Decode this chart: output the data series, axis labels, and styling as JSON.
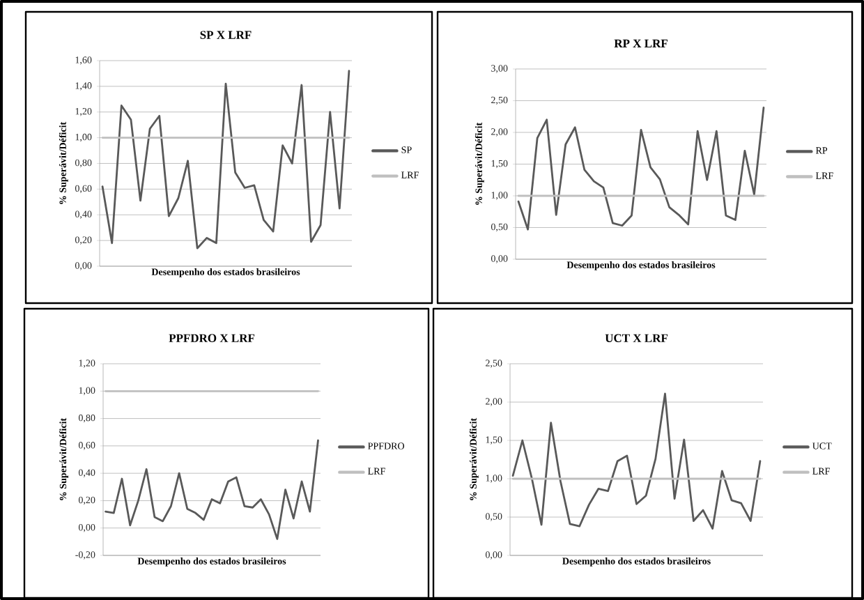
{
  "chart_data": [
    {
      "type": "line",
      "title": "SP X LRF",
      "xlabel": "Desempenho dos estados brasileiros",
      "ylabel": "% Superávit/Déficit",
      "categories": [
        null,
        null,
        null,
        null,
        null,
        null,
        null,
        null,
        null,
        null,
        null,
        null,
        null,
        null,
        null,
        null,
        null,
        null,
        null,
        null,
        null,
        null,
        null,
        null,
        null,
        null,
        null
      ],
      "series": [
        {
          "name": "SP",
          "color": "#595959",
          "values": [
            0.62,
            0.18,
            1.25,
            1.14,
            0.51,
            1.07,
            1.17,
            0.39,
            0.53,
            0.82,
            0.14,
            0.22,
            0.18,
            1.42,
            0.73,
            0.61,
            0.63,
            0.36,
            0.27,
            0.94,
            0.8,
            1.41,
            0.19,
            0.32,
            1.2,
            0.45,
            1.52
          ]
        },
        {
          "name": "LRF",
          "color": "#bfbfbf",
          "values": [
            1.0,
            1.0,
            1.0,
            1.0,
            1.0,
            1.0,
            1.0,
            1.0,
            1.0,
            1.0,
            1.0,
            1.0,
            1.0,
            1.0,
            1.0,
            1.0,
            1.0,
            1.0,
            1.0,
            1.0,
            1.0,
            1.0,
            1.0,
            1.0,
            1.0,
            1.0,
            1.0
          ]
        }
      ],
      "ylim": [
        0,
        1.6
      ],
      "yticks": [
        {
          "value": 0,
          "label": "0,00"
        },
        {
          "value": 0.2,
          "label": "0,20"
        },
        {
          "value": 0.4,
          "label": "0,40"
        },
        {
          "value": 0.6,
          "label": "0,60"
        },
        {
          "value": 0.8,
          "label": "0,80"
        },
        {
          "value": 1.0,
          "label": "1,00"
        },
        {
          "value": 1.2,
          "label": "1,20"
        },
        {
          "value": 1.4,
          "label": "1,40"
        },
        {
          "value": 1.6,
          "label": "1,60"
        }
      ],
      "grid": "y",
      "legend": "right"
    },
    {
      "type": "line",
      "title": "RP X LRF",
      "xlabel": "Desempenho dos estados brasileiros",
      "ylabel": "% Superávit/Déficit",
      "categories": [
        null,
        null,
        null,
        null,
        null,
        null,
        null,
        null,
        null,
        null,
        null,
        null,
        null,
        null,
        null,
        null,
        null,
        null,
        null,
        null,
        null,
        null,
        null,
        null,
        null,
        null,
        null
      ],
      "series": [
        {
          "name": "RP",
          "color": "#595959",
          "values": [
            0.91,
            0.47,
            1.91,
            2.2,
            0.7,
            1.81,
            2.08,
            1.41,
            1.23,
            1.13,
            0.57,
            0.53,
            0.69,
            2.04,
            1.45,
            1.26,
            0.82,
            0.7,
            0.55,
            2.02,
            1.25,
            2.02,
            0.69,
            0.62,
            1.71,
            1.02,
            2.39
          ]
        },
        {
          "name": "LRF",
          "color": "#bfbfbf",
          "values": [
            1.0,
            1.0,
            1.0,
            1.0,
            1.0,
            1.0,
            1.0,
            1.0,
            1.0,
            1.0,
            1.0,
            1.0,
            1.0,
            1.0,
            1.0,
            1.0,
            1.0,
            1.0,
            1.0,
            1.0,
            1.0,
            1.0,
            1.0,
            1.0,
            1.0,
            1.0,
            1.0
          ]
        }
      ],
      "ylim": [
        0,
        3.0
      ],
      "yticks": [
        {
          "value": 0,
          "label": "0,00"
        },
        {
          "value": 0.5,
          "label": "0,50"
        },
        {
          "value": 1.0,
          "label": "1,00"
        },
        {
          "value": 1.5,
          "label": "1,50"
        },
        {
          "value": 2.0,
          "label": "2,00"
        },
        {
          "value": 2.5,
          "label": "2,50"
        },
        {
          "value": 3.0,
          "label": "3,00"
        }
      ],
      "grid": "y",
      "legend": "right"
    },
    {
      "type": "line",
      "title": "PPFDRO X LRF",
      "xlabel": "Desempenho dos estados brasileiros",
      "ylabel": "% Superávit/Déficit",
      "categories": [
        null,
        null,
        null,
        null,
        null,
        null,
        null,
        null,
        null,
        null,
        null,
        null,
        null,
        null,
        null,
        null,
        null,
        null,
        null,
        null,
        null,
        null,
        null,
        null,
        null,
        null,
        null
      ],
      "series": [
        {
          "name": "PPFDRO",
          "color": "#595959",
          "values": [
            0.12,
            0.11,
            0.36,
            0.02,
            0.2,
            0.43,
            0.08,
            0.05,
            0.16,
            0.4,
            0.14,
            0.11,
            0.06,
            0.21,
            0.18,
            0.34,
            0.37,
            0.16,
            0.15,
            0.21,
            0.1,
            -0.08,
            0.28,
            0.07,
            0.34,
            0.12,
            0.64
          ]
        },
        {
          "name": "LRF",
          "color": "#bfbfbf",
          "values": [
            1.0,
            1.0,
            1.0,
            1.0,
            1.0,
            1.0,
            1.0,
            1.0,
            1.0,
            1.0,
            1.0,
            1.0,
            1.0,
            1.0,
            1.0,
            1.0,
            1.0,
            1.0,
            1.0,
            1.0,
            1.0,
            1.0,
            1.0,
            1.0,
            1.0,
            1.0,
            1.0
          ]
        }
      ],
      "ylim": [
        -0.2,
        1.2
      ],
      "yticks": [
        {
          "value": -0.2,
          "label": "-0,20"
        },
        {
          "value": 0,
          "label": "0,00"
        },
        {
          "value": 0.2,
          "label": "0,20"
        },
        {
          "value": 0.4,
          "label": "0,40"
        },
        {
          "value": 0.6,
          "label": "0,60"
        },
        {
          "value": 0.8,
          "label": "0,80"
        },
        {
          "value": 1.0,
          "label": "1,00"
        },
        {
          "value": 1.2,
          "label": "1,20"
        }
      ],
      "grid": "y",
      "legend": "right"
    },
    {
      "type": "line",
      "title": "UCT X LRF",
      "xlabel": "Desempenho dos estados brasileiros",
      "ylabel": "% Superávit/Déficit",
      "categories": [
        null,
        null,
        null,
        null,
        null,
        null,
        null,
        null,
        null,
        null,
        null,
        null,
        null,
        null,
        null,
        null,
        null,
        null,
        null,
        null,
        null,
        null,
        null,
        null,
        null,
        null,
        null
      ],
      "series": [
        {
          "name": "UCT",
          "color": "#595959",
          "values": [
            1.04,
            1.5,
            1.0,
            0.4,
            1.73,
            0.97,
            0.41,
            0.38,
            0.66,
            0.87,
            0.84,
            1.23,
            1.3,
            0.67,
            0.78,
            1.26,
            2.11,
            0.74,
            1.51,
            0.45,
            0.59,
            0.35,
            1.1,
            0.72,
            0.68,
            0.45,
            1.23
          ]
        },
        {
          "name": "LRF",
          "color": "#bfbfbf",
          "values": [
            1.0,
            1.0,
            1.0,
            1.0,
            1.0,
            1.0,
            1.0,
            1.0,
            1.0,
            1.0,
            1.0,
            1.0,
            1.0,
            1.0,
            1.0,
            1.0,
            1.0,
            1.0,
            1.0,
            1.0,
            1.0,
            1.0,
            1.0,
            1.0,
            1.0,
            1.0,
            1.0
          ]
        }
      ],
      "ylim": [
        0,
        2.5
      ],
      "yticks": [
        {
          "value": 0,
          "label": "0,00"
        },
        {
          "value": 0.5,
          "label": "0,50"
        },
        {
          "value": 1.0,
          "label": "1,00"
        },
        {
          "value": 1.5,
          "label": "1,50"
        },
        {
          "value": 2.0,
          "label": "2,00"
        },
        {
          "value": 2.5,
          "label": "2,50"
        }
      ],
      "grid": "y",
      "legend": "right"
    }
  ]
}
